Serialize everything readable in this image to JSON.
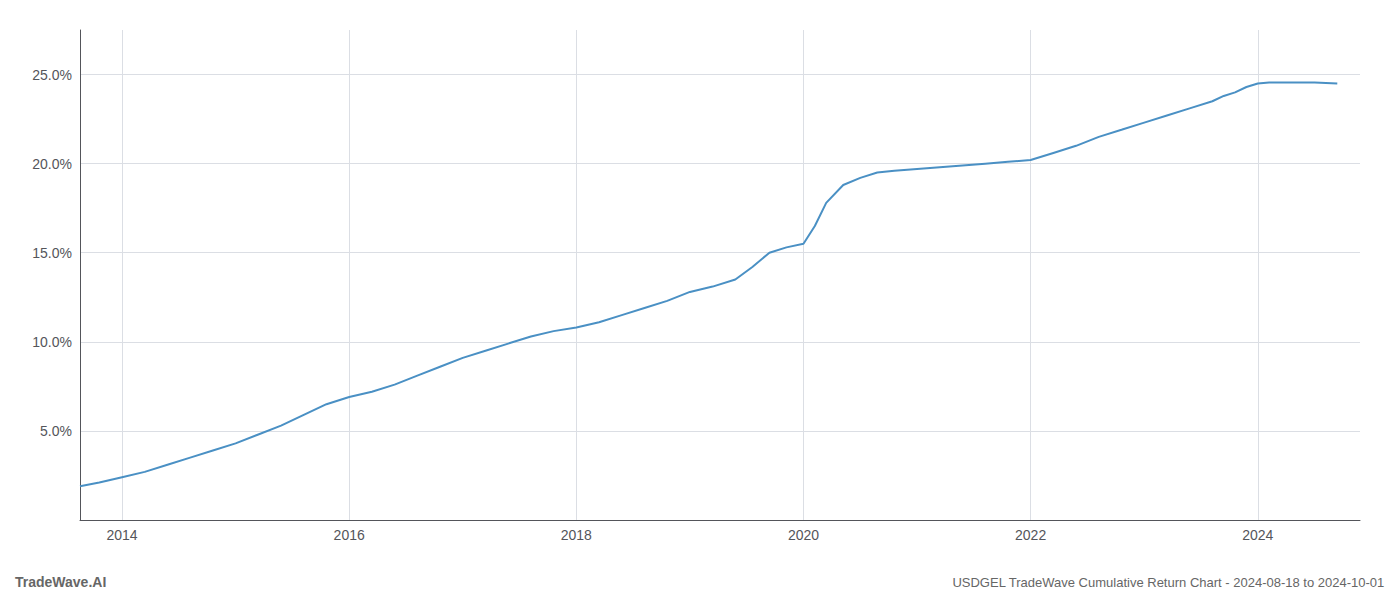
{
  "chart_data": {
    "type": "line",
    "title": "USDGEL TradeWave Cumulative Return Chart - 2024-08-18 to 2024-10-01",
    "annotations": [
      "TradeWave.AI"
    ],
    "color": "#4a90c4",
    "grid": true,
    "x": [
      2013.63,
      2013.8,
      2014.0,
      2014.2,
      2014.4,
      2014.6,
      2014.8,
      2015.0,
      2015.2,
      2015.4,
      2015.6,
      2015.8,
      2016.0,
      2016.2,
      2016.4,
      2016.6,
      2016.8,
      2017.0,
      2017.2,
      2017.4,
      2017.6,
      2017.8,
      2018.0,
      2018.2,
      2018.4,
      2018.6,
      2018.8,
      2019.0,
      2019.2,
      2019.4,
      2019.55,
      2019.7,
      2019.85,
      2020.0,
      2020.1,
      2020.2,
      2020.35,
      2020.5,
      2020.65,
      2020.8,
      2021.0,
      2021.2,
      2021.4,
      2021.6,
      2021.8,
      2022.0,
      2022.2,
      2022.4,
      2022.6,
      2022.8,
      2023.0,
      2023.2,
      2023.4,
      2023.6,
      2023.7,
      2023.8,
      2023.9,
      2024.0,
      2024.1,
      2024.3,
      2024.5,
      2024.7
    ],
    "values": [
      1.9,
      2.1,
      2.4,
      2.7,
      3.1,
      3.5,
      3.9,
      4.3,
      4.8,
      5.3,
      5.9,
      6.5,
      6.9,
      7.2,
      7.6,
      8.1,
      8.6,
      9.1,
      9.5,
      9.9,
      10.3,
      10.6,
      10.8,
      11.1,
      11.5,
      11.9,
      12.3,
      12.8,
      13.1,
      13.5,
      14.2,
      15.0,
      15.3,
      15.5,
      16.5,
      17.8,
      18.8,
      19.2,
      19.5,
      19.6,
      19.7,
      19.8,
      19.9,
      20.0,
      20.1,
      20.2,
      20.6,
      21.0,
      21.5,
      21.9,
      22.3,
      22.7,
      23.1,
      23.5,
      23.8,
      24.0,
      24.3,
      24.5,
      24.55,
      24.55,
      24.55,
      24.5
    ],
    "xlim": [
      2013.63,
      2024.9
    ],
    "xticks": [
      2014,
      2016,
      2018,
      2020,
      2022,
      2024
    ],
    "ylim": [
      0,
      27.5
    ],
    "yticks": [
      {
        "value": 5.0,
        "label": "5.0%"
      },
      {
        "value": 10.0,
        "label": "10.0%"
      },
      {
        "value": 15.0,
        "label": "15.0%"
      },
      {
        "value": 20.0,
        "label": "20.0%"
      },
      {
        "value": 25.0,
        "label": "25.0%"
      }
    ]
  }
}
